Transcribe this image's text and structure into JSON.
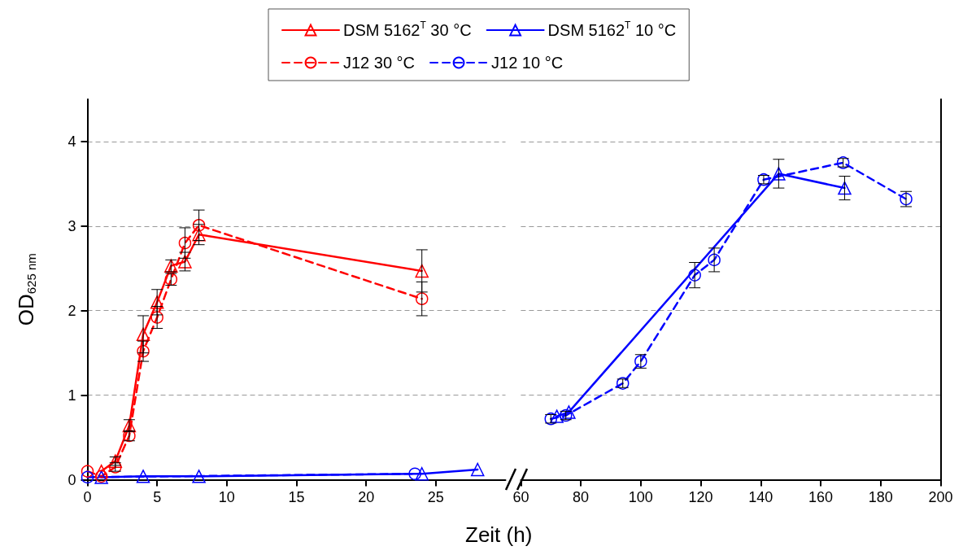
{
  "chart_data": [
    {
      "type": "line",
      "xlabel": "Zeit (h)",
      "ylabel": "OD$_{625 nm}$",
      "xlim": [
        0,
        30
      ],
      "xticks": [
        0,
        5,
        10,
        15,
        20,
        25
      ],
      "ylim": [
        0,
        4.5
      ],
      "yticks": [
        0,
        1,
        2,
        3,
        4
      ],
      "grid": "y",
      "legend": "top",
      "tick_labels": true,
      "series": [
        {
          "name": "DSM 5162$^{T}$ 30 °C",
          "color": "#ff0000",
          "marker": "triangle",
          "line_style": "solid",
          "x": [
            1,
            2,
            3,
            4,
            5,
            6,
            7,
            8,
            24
          ],
          "values": [
            0.1,
            0.22,
            0.64,
            1.72,
            2.1,
            2.53,
            2.58,
            2.9,
            2.47
          ],
          "errors": [
            null,
            0.05,
            0.07,
            0.22,
            0.15,
            0.07,
            0.11,
            0.12,
            0.25
          ]
        },
        {
          "name": "DSM 5162$^{T}$ 10 °C",
          "color": "#0000ff",
          "marker": "triangle",
          "line_style": "solid",
          "x": [
            1,
            4,
            8,
            24,
            28
          ],
          "values": [
            0.03,
            0.04,
            0.04,
            0.07,
            0.12
          ]
        },
        {
          "name": "J12 30 °C",
          "color": "#ff0000",
          "marker": "circle",
          "line_style": "dashed",
          "x": [
            0,
            1,
            2,
            3,
            4,
            5,
            6,
            7,
            8,
            24
          ],
          "values": [
            0.1,
            0.04,
            0.15,
            0.52,
            1.52,
            1.92,
            2.37,
            2.8,
            3.01,
            2.14
          ],
          "errors": [
            null,
            null,
            0.05,
            0.06,
            0.12,
            0.13,
            0.07,
            0.18,
            0.18,
            0.2
          ]
        },
        {
          "name": "J12 10 °C",
          "color": "#0000ff",
          "marker": "circle",
          "line_style": "dashed",
          "x": [
            0,
            23.5
          ],
          "values": [
            0.03,
            0.07
          ]
        }
      ]
    },
    {
      "type": "line",
      "xlim": [
        60,
        200
      ],
      "xticks": [
        60,
        80,
        100,
        120,
        140,
        160,
        180,
        200
      ],
      "ylim": [
        0,
        4.5
      ],
      "yticks": [
        0,
        1,
        2,
        3,
        4
      ],
      "grid": "y",
      "tick_labels": "x",
      "series": [
        {
          "color": "#0000ff",
          "marker": "triangle",
          "line_style": "solid",
          "x": [
            72,
            76,
            146,
            168
          ],
          "values": [
            0.75,
            0.8,
            3.62,
            3.45
          ],
          "errors": [
            null,
            null,
            0.17,
            0.14
          ]
        },
        {
          "color": "#0000ff",
          "marker": "circle",
          "line_style": "dashed",
          "x": [
            70,
            75,
            94,
            100,
            118,
            124.5,
            141,
            167.5,
            188.5
          ],
          "values": [
            0.72,
            0.76,
            1.14,
            1.4,
            2.42,
            2.6,
            3.55,
            3.75,
            3.32
          ],
          "errors": [
            0.05,
            0.05,
            0.05,
            0.08,
            0.15,
            0.14,
            0.05,
            0.05,
            0.09
          ]
        }
      ]
    }
  ]
}
